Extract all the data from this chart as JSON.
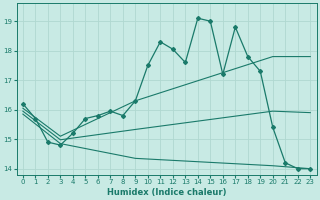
{
  "xlabel": "Humidex (Indice chaleur)",
  "background_color": "#c8eae4",
  "grid_color": "#b0d8d0",
  "line_color": "#1a7a6a",
  "xlim": [
    -0.5,
    23.5
  ],
  "ylim": [
    13.8,
    19.6
  ],
  "yticks": [
    14,
    15,
    16,
    17,
    18,
    19
  ],
  "xticks": [
    0,
    1,
    2,
    3,
    4,
    5,
    6,
    7,
    8,
    9,
    10,
    11,
    12,
    13,
    14,
    15,
    16,
    17,
    18,
    19,
    20,
    21,
    22,
    23
  ],
  "main_x": [
    0,
    1,
    2,
    3,
    4,
    5,
    6,
    7,
    8,
    9,
    10,
    11,
    12,
    13,
    14,
    15,
    16,
    17,
    18,
    19,
    20,
    21,
    22,
    23
  ],
  "main_y": [
    16.2,
    15.7,
    14.9,
    14.8,
    15.2,
    15.7,
    15.8,
    15.95,
    15.8,
    16.3,
    17.5,
    18.3,
    18.05,
    17.6,
    19.1,
    19.0,
    17.2,
    18.8,
    17.8,
    17.3,
    15.4,
    14.2,
    14.0,
    14.0
  ],
  "upper_x": [
    0,
    3,
    9,
    20,
    23
  ],
  "upper_y": [
    16.05,
    15.1,
    16.3,
    17.8,
    17.8
  ],
  "lower_x": [
    0,
    3,
    9,
    20,
    23
  ],
  "lower_y": [
    15.85,
    14.85,
    14.35,
    14.1,
    14.0
  ],
  "mid_x": [
    0,
    3,
    9,
    20,
    23
  ],
  "mid_y": [
    15.95,
    14.98,
    15.33,
    15.95,
    15.9
  ]
}
